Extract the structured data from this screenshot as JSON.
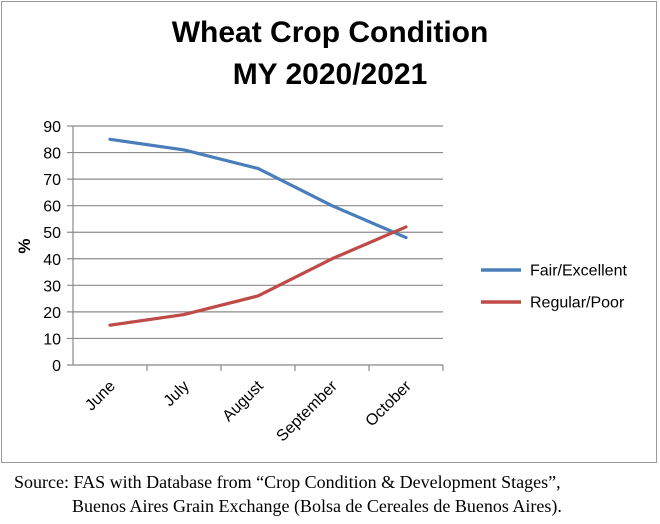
{
  "chart_data": {
    "type": "line",
    "title_lines": [
      "Wheat Crop Condition",
      "MY 2020/2021"
    ],
    "ylabel": "%",
    "xlabel": "",
    "categories": [
      "June",
      "July",
      "August",
      "September",
      "October"
    ],
    "ylim": [
      0,
      90
    ],
    "yticks": [
      0,
      10,
      20,
      30,
      40,
      50,
      60,
      70,
      80,
      90
    ],
    "grid": true,
    "legend_position": "right",
    "series": [
      {
        "name": "Fair/Excellent",
        "values": [
          85,
          81,
          74,
          60,
          48
        ],
        "color": "#4a7ebb"
      },
      {
        "name": "Regular/Poor",
        "values": [
          15,
          19,
          26,
          40,
          52
        ],
        "color": "#be4b48"
      }
    ]
  },
  "source": {
    "line1": "Source: FAS with Database from “Crop Condition & Development Stages”,",
    "line2": "Buenos Aires Grain Exchange (Bolsa de Cereales de Buenos Aires)."
  }
}
